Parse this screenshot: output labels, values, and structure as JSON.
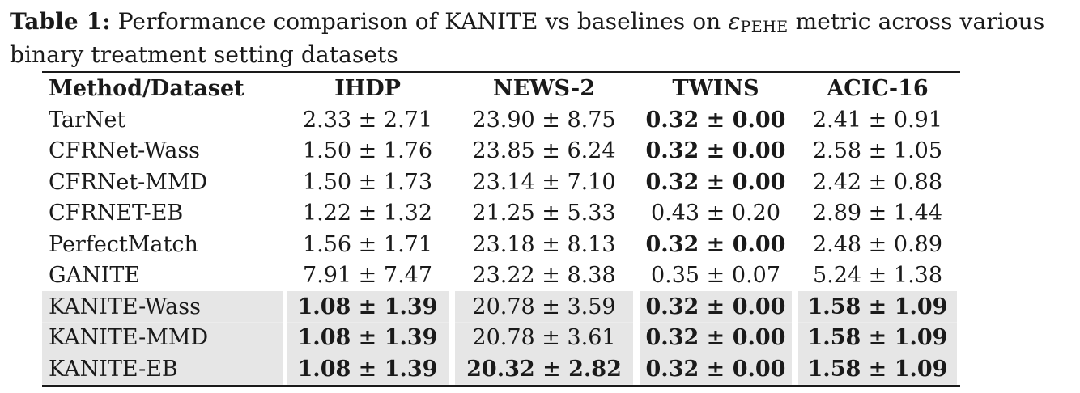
{
  "caption": {
    "label": "Table 1:",
    "text_before_metric": "Performance comparison of KANITE vs baselines on",
    "metric_symbol": "ε",
    "metric_subscript": "PEHE",
    "text_after_metric": "metric across various binary treatment setting datasets"
  },
  "table": {
    "headers": [
      "Method/Dataset",
      "IHDP",
      "NEWS-2",
      "TWINS",
      "ACIC-16"
    ],
    "rows": [
      {
        "method": "TarNet",
        "cells": [
          {
            "value": "2.33 ± 2.71",
            "bold": false
          },
          {
            "value": "23.90 ± 8.75",
            "bold": false
          },
          {
            "value": "0.32 ± 0.00",
            "bold": true
          },
          {
            "value": "2.41 ± 0.91",
            "bold": false
          }
        ],
        "shaded": false
      },
      {
        "method": "CFRNet-Wass",
        "cells": [
          {
            "value": "1.50 ± 1.76",
            "bold": false
          },
          {
            "value": "23.85 ± 6.24",
            "bold": false
          },
          {
            "value": "0.32 ± 0.00",
            "bold": true
          },
          {
            "value": "2.58 ± 1.05",
            "bold": false
          }
        ],
        "shaded": false
      },
      {
        "method": "CFRNet-MMD",
        "cells": [
          {
            "value": "1.50 ± 1.73",
            "bold": false
          },
          {
            "value": "23.14 ± 7.10",
            "bold": false
          },
          {
            "value": "0.32 ± 0.00",
            "bold": true
          },
          {
            "value": "2.42 ± 0.88",
            "bold": false
          }
        ],
        "shaded": false
      },
      {
        "method": "CFRNET-EB",
        "cells": [
          {
            "value": "1.22 ± 1.32",
            "bold": false
          },
          {
            "value": "21.25 ± 5.33",
            "bold": false
          },
          {
            "value": "0.43 ± 0.20",
            "bold": false
          },
          {
            "value": "2.89 ± 1.44",
            "bold": false
          }
        ],
        "shaded": false
      },
      {
        "method": "PerfectMatch",
        "cells": [
          {
            "value": "1.56 ± 1.71",
            "bold": false
          },
          {
            "value": "23.18 ± 8.13",
            "bold": false
          },
          {
            "value": "0.32 ± 0.00",
            "bold": true
          },
          {
            "value": "2.48 ± 0.89",
            "bold": false
          }
        ],
        "shaded": false
      },
      {
        "method": "GANITE",
        "cells": [
          {
            "value": "7.91 ± 7.47",
            "bold": false
          },
          {
            "value": "23.22 ± 8.38",
            "bold": false
          },
          {
            "value": "0.35 ± 0.07",
            "bold": false
          },
          {
            "value": "5.24 ± 1.38",
            "bold": false
          }
        ],
        "shaded": false
      },
      {
        "method": "KANITE-Wass",
        "cells": [
          {
            "value": "1.08 ± 1.39",
            "bold": true
          },
          {
            "value": "20.78 ± 3.59",
            "bold": false
          },
          {
            "value": "0.32 ± 0.00",
            "bold": true
          },
          {
            "value": "1.58 ± 1.09",
            "bold": true
          }
        ],
        "shaded": true
      },
      {
        "method": "KANITE-MMD",
        "cells": [
          {
            "value": "1.08 ± 1.39",
            "bold": true
          },
          {
            "value": "20.78 ± 3.61",
            "bold": false
          },
          {
            "value": "0.32 ± 0.00",
            "bold": true
          },
          {
            "value": "1.58 ± 1.09",
            "bold": true
          }
        ],
        "shaded": true
      },
      {
        "method": "KANITE-EB",
        "cells": [
          {
            "value": "1.08 ± 1.39",
            "bold": true
          },
          {
            "value": "20.32 ± 2.82",
            "bold": true
          },
          {
            "value": "0.32 ± 0.00",
            "bold": true
          },
          {
            "value": "1.58 ± 1.09",
            "bold": true
          }
        ],
        "shaded": true
      }
    ]
  },
  "colors": {
    "shading": "#e6e6e6",
    "text": "#1a1a1a"
  }
}
